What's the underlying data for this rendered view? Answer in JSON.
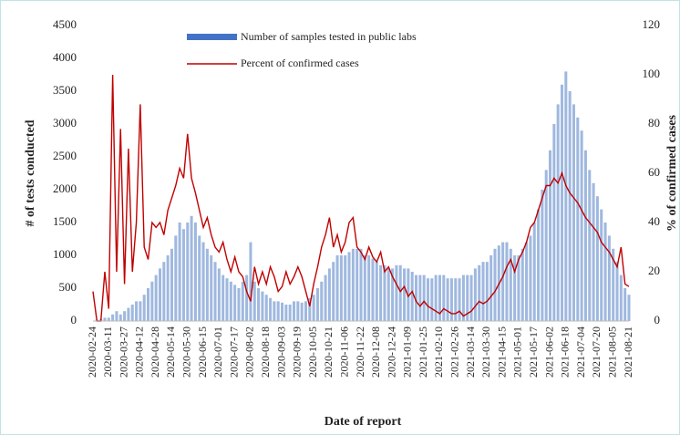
{
  "chart_data": {
    "type": "bar_line",
    "x_label": "Date of report",
    "y_label": "# of tests conducted",
    "y2_label": "% of confirmed cases",
    "categories": [
      "2020-02-24",
      null,
      null,
      null,
      "2020-03-11",
      null,
      null,
      null,
      "2020-03-27",
      null,
      null,
      null,
      "2020-04-12",
      null,
      null,
      null,
      "2020-04-28",
      null,
      null,
      null,
      "2020-05-14",
      null,
      null,
      null,
      "2020-05-30",
      null,
      null,
      null,
      "2020-06-15",
      null,
      null,
      null,
      "2020-07-01",
      null,
      null,
      null,
      "2020-07-17",
      null,
      null,
      null,
      "2020-08-02",
      null,
      null,
      null,
      "2020-08-18",
      null,
      null,
      null,
      "2020-09-03",
      null,
      null,
      null,
      "2020-09-19",
      null,
      null,
      null,
      "2020-10-05",
      null,
      null,
      null,
      "2020-10-21",
      null,
      null,
      null,
      "2020-11-06",
      null,
      null,
      null,
      "2020-11-22",
      null,
      null,
      null,
      "2020-12-08",
      null,
      null,
      null,
      "2020-12-24",
      null,
      null,
      null,
      "2021-01-09",
      null,
      null,
      null,
      "2021-01-25",
      null,
      null,
      null,
      "2021-02-10",
      null,
      null,
      null,
      "2021-02-26",
      null,
      null,
      null,
      "2021-03-14",
      null,
      null,
      null,
      "2021-03-30",
      null,
      null,
      null,
      "2021-04-15",
      null,
      null,
      null,
      "2021-05-01",
      null,
      null,
      null,
      "2021-05-17",
      null,
      null,
      null,
      "2021-06-02",
      null,
      null,
      null,
      "2021-06-18",
      null,
      null,
      null,
      "2021-07-04",
      null,
      null,
      null,
      "2021-07-20",
      null,
      null,
      null,
      "2021-08-05",
      null,
      null,
      null,
      "2021-08-21"
    ],
    "series": [
      {
        "name": "Number of samples tested in public labs",
        "color": "#9fb8df",
        "legend_color": "#4472c4",
        "values": [
          0,
          20,
          30,
          50,
          50,
          100,
          150,
          100,
          150,
          200,
          250,
          300,
          300,
          400,
          500,
          600,
          700,
          800,
          900,
          1000,
          1100,
          1300,
          1500,
          1400,
          1500,
          1600,
          1500,
          1300,
          1200,
          1100,
          1000,
          900,
          800,
          700,
          650,
          600,
          550,
          500,
          600,
          700,
          1200,
          600,
          500,
          450,
          400,
          350,
          300,
          300,
          280,
          250,
          250,
          300,
          300,
          280,
          300,
          350,
          400,
          500,
          600,
          700,
          800,
          900,
          1000,
          1000,
          1000,
          1050,
          1100,
          1100,
          1100,
          1000,
          1000,
          950,
          900,
          850,
          850,
          800,
          800,
          850,
          850,
          800,
          800,
          750,
          700,
          700,
          700,
          650,
          650,
          700,
          700,
          700,
          650,
          650,
          650,
          650,
          700,
          700,
          700,
          800,
          850,
          900,
          900,
          1000,
          1100,
          1150,
          1200,
          1200,
          1100,
          1000,
          1000,
          1100,
          1200,
          1300,
          1500,
          1700,
          2000,
          2300,
          2600,
          3000,
          3300,
          3600,
          3800,
          3500,
          3300,
          3100,
          2900,
          2600,
          2300,
          2100,
          1900,
          1700,
          1500,
          1300,
          1100,
          900,
          700,
          500,
          400
        ]
      },
      {
        "name": "Percent of confirmed cases",
        "color": "#c00000",
        "axis": "y2",
        "values": [
          12,
          0,
          0,
          20,
          5,
          100,
          20,
          78,
          15,
          70,
          20,
          40,
          88,
          30,
          25,
          40,
          38,
          40,
          35,
          45,
          50,
          55,
          62,
          58,
          76,
          58,
          52,
          45,
          38,
          42,
          35,
          30,
          28,
          32,
          25,
          20,
          26,
          20,
          18,
          12,
          8,
          22,
          15,
          20,
          15,
          22,
          18,
          12,
          14,
          20,
          15,
          18,
          22,
          18,
          12,
          6,
          15,
          22,
          30,
          35,
          42,
          30,
          35,
          28,
          32,
          40,
          42,
          30,
          28,
          25,
          30,
          26,
          24,
          28,
          20,
          22,
          18,
          15,
          12,
          14,
          10,
          12,
          8,
          6,
          8,
          6,
          5,
          4,
          3,
          5,
          4,
          3,
          3,
          4,
          2,
          3,
          4,
          6,
          8,
          7,
          8,
          10,
          12,
          15,
          18,
          22,
          25,
          20,
          25,
          28,
          32,
          38,
          40,
          45,
          50,
          55,
          55,
          58,
          56,
          60,
          55,
          52,
          50,
          48,
          45,
          42,
          40,
          38,
          36,
          32,
          30,
          28,
          25,
          22,
          30,
          15,
          14
        ]
      }
    ],
    "ylim": [
      0,
      4500
    ],
    "yticks": [
      0,
      500,
      1000,
      1500,
      2000,
      2500,
      3000,
      3500,
      4000,
      4500
    ],
    "y2lim": [
      0,
      120
    ],
    "y2ticks": [
      0,
      20,
      40,
      60,
      80,
      100,
      120
    ]
  }
}
